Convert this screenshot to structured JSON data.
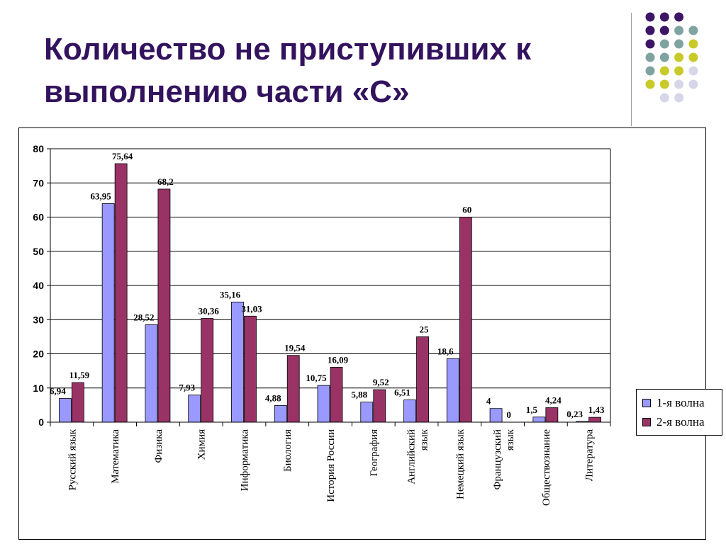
{
  "slide": {
    "title": "Количество не приступивших к выполнению части «С»"
  },
  "colors": {
    "title": "#33135e",
    "series1": "#9999ff",
    "series2": "#993366",
    "dot_purple": "#3d1566",
    "dot_teal": "#7fa3a0",
    "dot_olive": "#c9c92a",
    "dot_lavender": "#d6d6e8"
  },
  "chart_data": {
    "type": "bar",
    "title": "",
    "xlabel": "",
    "ylabel": "",
    "ylim": [
      0,
      80
    ],
    "yticks": [
      0,
      10,
      20,
      30,
      40,
      50,
      60,
      70,
      80
    ],
    "grid": true,
    "legend_position": "right",
    "categories": [
      "Русский язык",
      "Математика",
      "Физика",
      "Химия",
      "Информатика",
      "Биология",
      "История России",
      "География",
      "Английский язык",
      "Немецкий язык",
      "Французский язык",
      "Обществознание",
      "Литература"
    ],
    "series": [
      {
        "name": "1-я волна",
        "values": [
          6.94,
          63.95,
          28.52,
          7.93,
          35.16,
          4.88,
          10.75,
          5.88,
          6.51,
          18.6,
          4,
          1.5,
          0.23
        ],
        "labels": [
          "6,94",
          "63,95",
          "28,52",
          "7,93",
          "35,16",
          "4,88",
          "10,75",
          "5,88",
          "6,51",
          "18,6",
          "4",
          "1,5",
          "0,23"
        ]
      },
      {
        "name": "2-я волна",
        "values": [
          11.59,
          75.64,
          68.2,
          30.36,
          31.03,
          19.54,
          16.09,
          9.52,
          25,
          60,
          0,
          4.24,
          1.43
        ],
        "labels": [
          "11,59",
          "75,64",
          "68,2",
          "30,36",
          "31,03",
          "19,54",
          "16,09",
          "9,52",
          "25",
          "60",
          "0",
          "4,24",
          "1,43"
        ]
      }
    ]
  }
}
